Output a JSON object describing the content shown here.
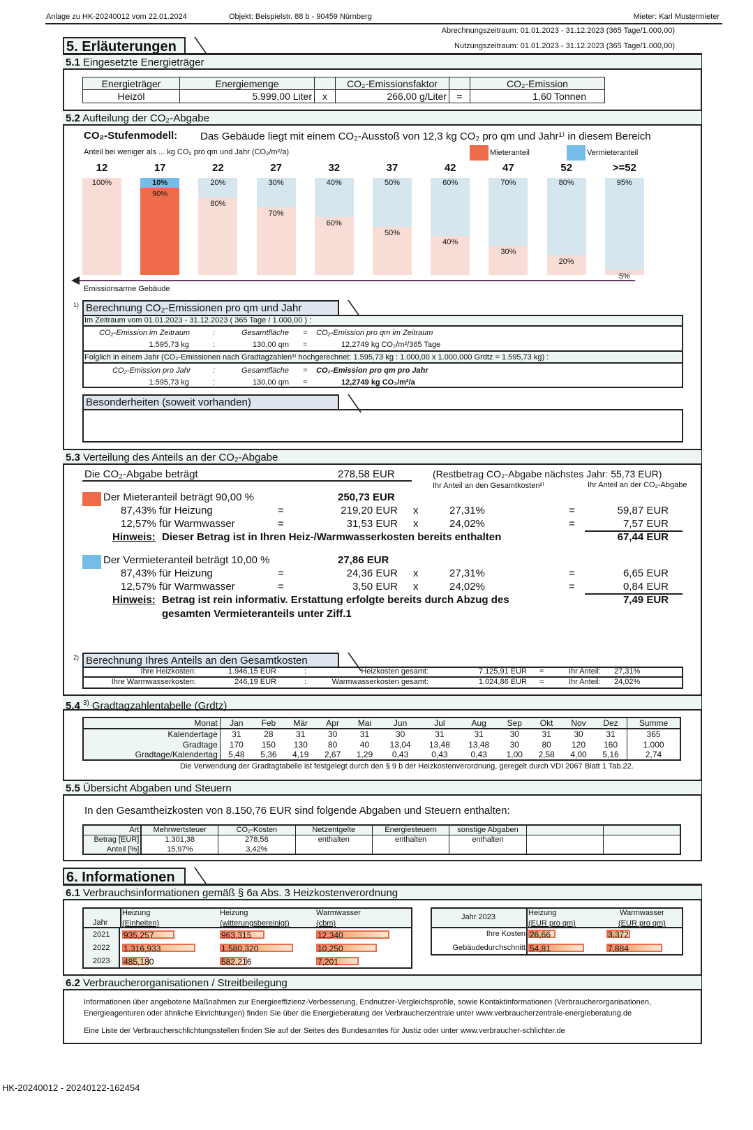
{
  "header": {
    "left": "Anlage zu HK-20240012   vom  22.01.2024",
    "object": "Objekt:  Beispielstr. 88 b - 90459 Nürnberg",
    "tenant": "Mieter: Karl Mustermieter",
    "billing_period": "Abrechnungszeitraum:  01.01.2023 - 31.12.2023 (365 Tage/1.000,00)",
    "usage_period": "Nutzungszeitraum:  01.01.2023 - 31.12.2023 (365 Tage/1.000,00)"
  },
  "s5": {
    "title": "5. Erläuterungen"
  },
  "s51": {
    "num": "5.1",
    "title": "Eingesetzte Energieträger",
    "headers": [
      "Energieträger",
      "Energiemenge",
      "",
      "CO₂-Emissionsfaktor",
      "",
      "CO₂-Emission"
    ],
    "row": [
      "Heizöl",
      "5.999,00 Liter",
      "x",
      "266,00 g/Liter",
      "=",
      "1,60 Tonnen"
    ]
  },
  "s52": {
    "num": "5.2",
    "title": "Aufteilung der CO₂-Abgabe",
    "model_label": "CO₂-Stufenmodell:",
    "model_text": "Das Gebäude liegt mit einem CO₂-Ausstoß von 12,3 kg CO₂ pro qm und Jahr¹⁾ in diesem Bereich",
    "sub": "Anteil bei weniger als ... kg CO₂ pro qm und Jahr  (CO₂/m²/a)",
    "legend": [
      {
        "label": "Mieteranteil",
        "color": "#f06b4a"
      },
      {
        "label": "Vermieteranteil",
        "color": "#74bde8"
      }
    ],
    "arrow_label": "Emissionsarme Gebäude",
    "colors": {
      "tenant_active": "#f06b4a",
      "landlord_active": "#74bde8",
      "tenant_light": "#f8ddd6",
      "landlord_light": "#d6e6ee",
      "arrow": "#6b3a6b"
    },
    "active_index": 1
  },
  "chart_data": {
    "type": "bar",
    "stacked": true,
    "categories": [
      "12",
      "17",
      "22",
      "27",
      "32",
      "37",
      "42",
      "47",
      "52",
      ">=52"
    ],
    "series": [
      {
        "name": "Mieteranteil",
        "values": [
          100,
          90,
          80,
          70,
          60,
          50,
          40,
          30,
          20,
          5
        ]
      },
      {
        "name": "Vermieteranteil",
        "values": [
          0,
          10,
          20,
          30,
          40,
          50,
          60,
          70,
          80,
          95
        ]
      }
    ],
    "labels_tenant": [
      "100%",
      "90%",
      "80%",
      "70%",
      "60%",
      "50%",
      "40%",
      "30%",
      "20%",
      "5%"
    ],
    "labels_landlord": [
      "",
      "10%",
      "20%",
      "30%",
      "40%",
      "50%",
      "60%",
      "70%",
      "80%",
      "95%"
    ],
    "ylim": [
      0,
      100
    ]
  },
  "calc1": {
    "mark": "1)",
    "title": "Berechnung CO₂-Emissionen pro qm und Jahr",
    "period": "Im Zeitraum vom 01.01.2023 - 31.12.2023  ( 365 Tage / 1.000,00 ) :",
    "r1h": [
      "CO₂-Emission im Zeitraum",
      ":",
      "Gesamtfläche",
      "=",
      "CO₂-Emission pro qm im Zeitraum"
    ],
    "r1v": [
      "1.595,73 kg",
      ":",
      "130,00 qm",
      "=",
      "12,2749 kg CO₂/m²/365 Tage"
    ],
    "folg": "Folglich in einem Jahr (CO₂-Emissionen nach Gradtagzahlen³⁾ hochgerechnet: 1.595,73 kg : 1.000,00 x 1.000,000 Grdtz = 1.595,73 kg) :",
    "r2h": [
      "CO₂-Emission pro Jahr",
      ":",
      "Gesamtfläche",
      "=",
      "CO₂-Emission pro qm pro Jahr"
    ],
    "r2v": [
      "1.595,73 kg",
      ":",
      "130,00 qm",
      "=",
      "12,2749  kg CO₂/m²/a"
    ]
  },
  "besonderheiten": {
    "title": "Besonderheiten (soweit vorhanden)"
  },
  "s53": {
    "num": "5.3",
    "title": "Verteilung des Anteils an der CO₂-Abgabe",
    "abgabe_label": "Die CO₂-Abgabe beträgt",
    "abgabe_value": "278,58  EUR",
    "rest": "(Restbetrag CO₂-Abgabe nächstes Jahr: 55,73 EUR)",
    "col1": "Ihr Anteil an den Gesamtkosten²⁾",
    "col2": "Ihr Anteil an der CO₂-Abgabe",
    "tenant": {
      "label": "Der Mieteranteil beträgt 90,00 %",
      "total": "250,73  EUR",
      "rows": [
        [
          "87,43%  für Heizung",
          "=",
          "219,20  EUR",
          "x",
          "27,31%",
          "=",
          "59,87  EUR"
        ],
        [
          "12,57%  für Warmwasser",
          "=",
          "31,53  EUR",
          "x",
          "24,02%",
          "=",
          "7,57  EUR"
        ]
      ],
      "hint_label": "Hinweis:",
      "hint": "Dieser Betrag ist in Ihren Heiz-/Warmwasserkosten bereits enthalten",
      "sum": "67,44  EUR"
    },
    "landlord": {
      "label": "Der Vermieteranteil beträgt 10,00 %",
      "total": "27,86  EUR",
      "rows": [
        [
          "87,43%  für Heizung",
          "=",
          "24,36  EUR",
          "x",
          "27,31%",
          "=",
          "6,65  EUR"
        ],
        [
          "12,57%  für Warmwasser",
          "=",
          "3,50  EUR",
          "x",
          "24,02%",
          "=",
          "0,84  EUR"
        ]
      ],
      "hint_label": "Hinweis:",
      "hint": "Betrag ist rein informativ. Erstattung erfolgte bereits durch Abzug des",
      "hint2": "gesamten Vermieteranteils unter Ziff.1",
      "sum": "7,49  EUR"
    }
  },
  "calc2": {
    "mark": "2)",
    "title": "Berechnung Ihres Anteils an den Gesamtkosten",
    "rows": [
      [
        "Ihre Heizkosten:",
        "1.946,15  EUR",
        ":",
        "Heizkosten gesamt:",
        "7.125,91  EUR",
        "=",
        "Ihr Anteil:",
        "27,31%"
      ],
      [
        "Ihre Warmwasserkosten:",
        "246,19  EUR",
        ":",
        "Warmwasserkosten gesamt:",
        "1.024,86  EUR",
        "=",
        "Ihr Anteil:",
        "24,02%"
      ]
    ]
  },
  "s54": {
    "num": "5.4",
    "sup": "3)",
    "title": "Gradtagzahlentabelle (Grdtz)",
    "header": [
      "Monat",
      "Jan",
      "Feb",
      "Mär",
      "Apr",
      "Mai",
      "Jun",
      "Jul",
      "Aug",
      "Sep",
      "Okt",
      "Nov",
      "Dez",
      "Summe"
    ],
    "rows": [
      [
        "Kalendertage",
        "31",
        "28",
        "31",
        "30",
        "31",
        "30",
        "31",
        "31",
        "30",
        "31",
        "30",
        "31",
        "365"
      ],
      [
        "Gradtage",
        "170",
        "150",
        "130",
        "80",
        "40",
        "13,04",
        "13,48",
        "13,48",
        "30",
        "80",
        "120",
        "160",
        "1.000"
      ],
      [
        "Gradtage/Kalendertag",
        "5,48",
        "5,36",
        "4,19",
        "2,67",
        "1,29",
        "0,43",
        "0,43",
        "0,43",
        "1,00",
        "2,58",
        "4,00",
        "5,16",
        "2,74"
      ]
    ],
    "note": "Die Verwendung der Gradtagtabelle ist festgelegt durch den § 9 b der Heizkostenverordnung, geregelt durch VDI 2067 Blatt 1 Tab.22."
  },
  "s55": {
    "num": "5.5",
    "title": "Übersicht Abgaben und Steuern",
    "intro": "In den Gesamtheizkosten von 8.150,76 EUR sind folgende Abgaben und Steuern enthalten:",
    "header": [
      "Art",
      "Mehrwertsteuer",
      "CO₂-Kosten",
      "Netzentgelte",
      "Energiesteuern",
      "sonstige Abgaben",
      "",
      ""
    ],
    "rows": [
      [
        "Betrag [EUR]",
        "1.301,38",
        "278,58",
        "enthalten",
        "enthalten",
        "enthalten",
        "",
        ""
      ],
      [
        "Anteil [%]",
        "15,97%",
        "3,42%",
        "",
        "",
        "",
        "",
        ""
      ]
    ]
  },
  "s6": {
    "title": "6. Informationen"
  },
  "s61": {
    "num": "6.1",
    "title": "Verbrauchsinformationen gemäß § 6a Abs. 3 Heizkostenverordnung",
    "left": {
      "year_label": "Jahr",
      "cols": [
        [
          "Heizung",
          "(Einheiten)"
        ],
        [
          "Heizung",
          "(witterungsbereinigt)"
        ],
        [
          "Warmwasser",
          "(cbm)"
        ]
      ],
      "rows": [
        {
          "year": "2021",
          "values": [
            935.257,
            963.315,
            12.34
          ],
          "labels": [
            "935,257",
            "963,315",
            "12,340"
          ]
        },
        {
          "year": "2022",
          "values": [
            1316.933,
            1580.32,
            10.25
          ],
          "labels": [
            "1.316,933",
            "1.580,320",
            "10,250"
          ]
        },
        {
          "year": "2023",
          "values": [
            485.18,
            582.216,
            7.201
          ],
          "labels": [
            "485,180",
            "582,216",
            "7,201"
          ]
        }
      ]
    },
    "right": {
      "year_label": "Jahr 2023",
      "cols": [
        [
          "Heizung",
          "(EUR pro qm)"
        ],
        [
          "Warmwasser",
          "(EUR pro qm)"
        ]
      ],
      "rows": [
        {
          "label": "Ihre Kosten",
          "values": [
            26.66,
            3.372
          ],
          "labels": [
            "26,66",
            "3,372"
          ]
        },
        {
          "label": "Gebäudedurchschnitt",
          "values": [
            54.81,
            7.884
          ],
          "labels": [
            "54,81",
            "7,884"
          ]
        }
      ]
    }
  },
  "s62": {
    "num": "6.2",
    "title": "Verbraucherorganisationen / Streitbeilegung",
    "p1": "Informationen über angebotene Maßnahmen zur Energieeffizienz-Verbesserung, Endnutzer-Vergleichsprofile, sowie Kontaktinformationen (Verbraucherorganisationen,",
    "p1b": "Energieagenturen oder ähnliche Einrichtungen) finden Sie über die Energieberatung der Verbraucherzentrale unter www.verbraucherzentrale-energieberatung.de",
    "p2": "Eine Liste der Verbraucherschlichtungsstellen finden Sie auf der Seites des Bundesamtes für Justiz oder unter www.verbraucher-schlichter.de"
  },
  "footer": {
    "id": "HK-20240012 - 20240122-162454"
  }
}
